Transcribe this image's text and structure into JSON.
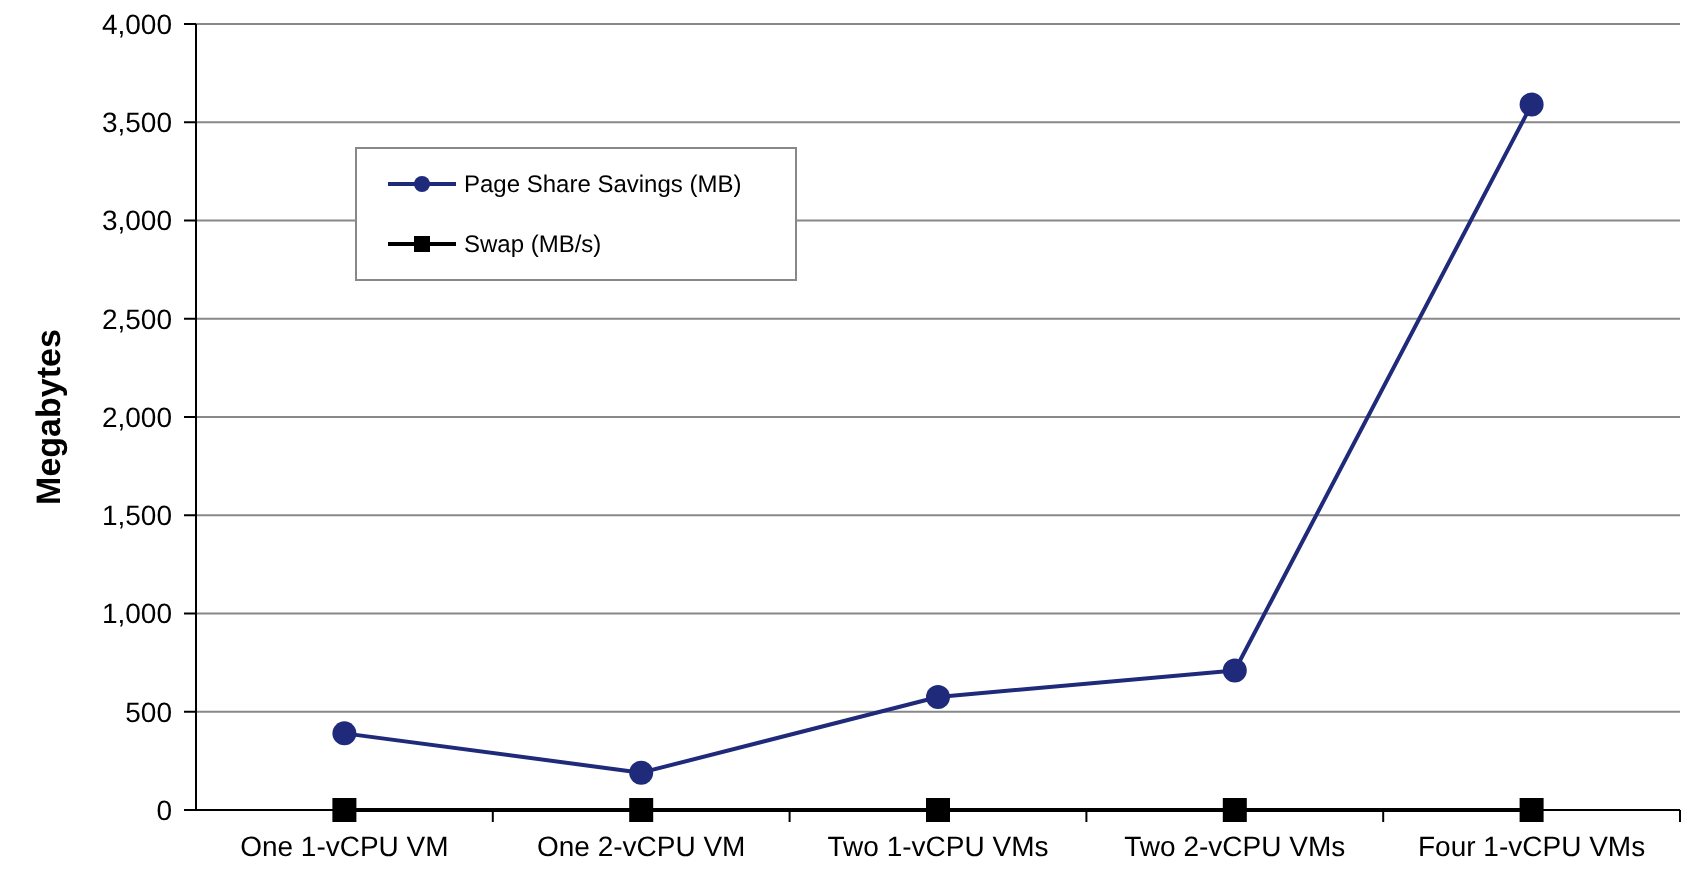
{
  "chart_data": {
    "type": "line",
    "ylabel": "Megabytes",
    "categories": [
      "One 1-vCPU VM",
      "One 2-vCPU VM",
      "Two 1-vCPU VMs",
      "Two 2-vCPU VMs",
      "Four 1-vCPU VMs"
    ],
    "series": [
      {
        "name": "Page Share Savings (MB)",
        "color": "#1f2a7a",
        "marker": "circle",
        "values": [
          390,
          190,
          575,
          710,
          3590
        ]
      },
      {
        "name": "Swap (MB/s)",
        "color": "#000000",
        "marker": "square",
        "values": [
          0,
          0,
          0,
          0,
          0
        ]
      }
    ],
    "ylim": [
      0,
      4000
    ],
    "yticks": [
      {
        "value": 0,
        "label": "0"
      },
      {
        "value": 500,
        "label": "500"
      },
      {
        "value": 1000,
        "label": "1,000"
      },
      {
        "value": 1500,
        "label": "1,500"
      },
      {
        "value": 2000,
        "label": "2,000"
      },
      {
        "value": 2500,
        "label": "2,500"
      },
      {
        "value": 3000,
        "label": "3,000"
      },
      {
        "value": 3500,
        "label": "3,500"
      },
      {
        "value": 4000,
        "label": "4,000"
      }
    ],
    "grid": "y",
    "legend": "top left",
    "line_style": "solid"
  }
}
